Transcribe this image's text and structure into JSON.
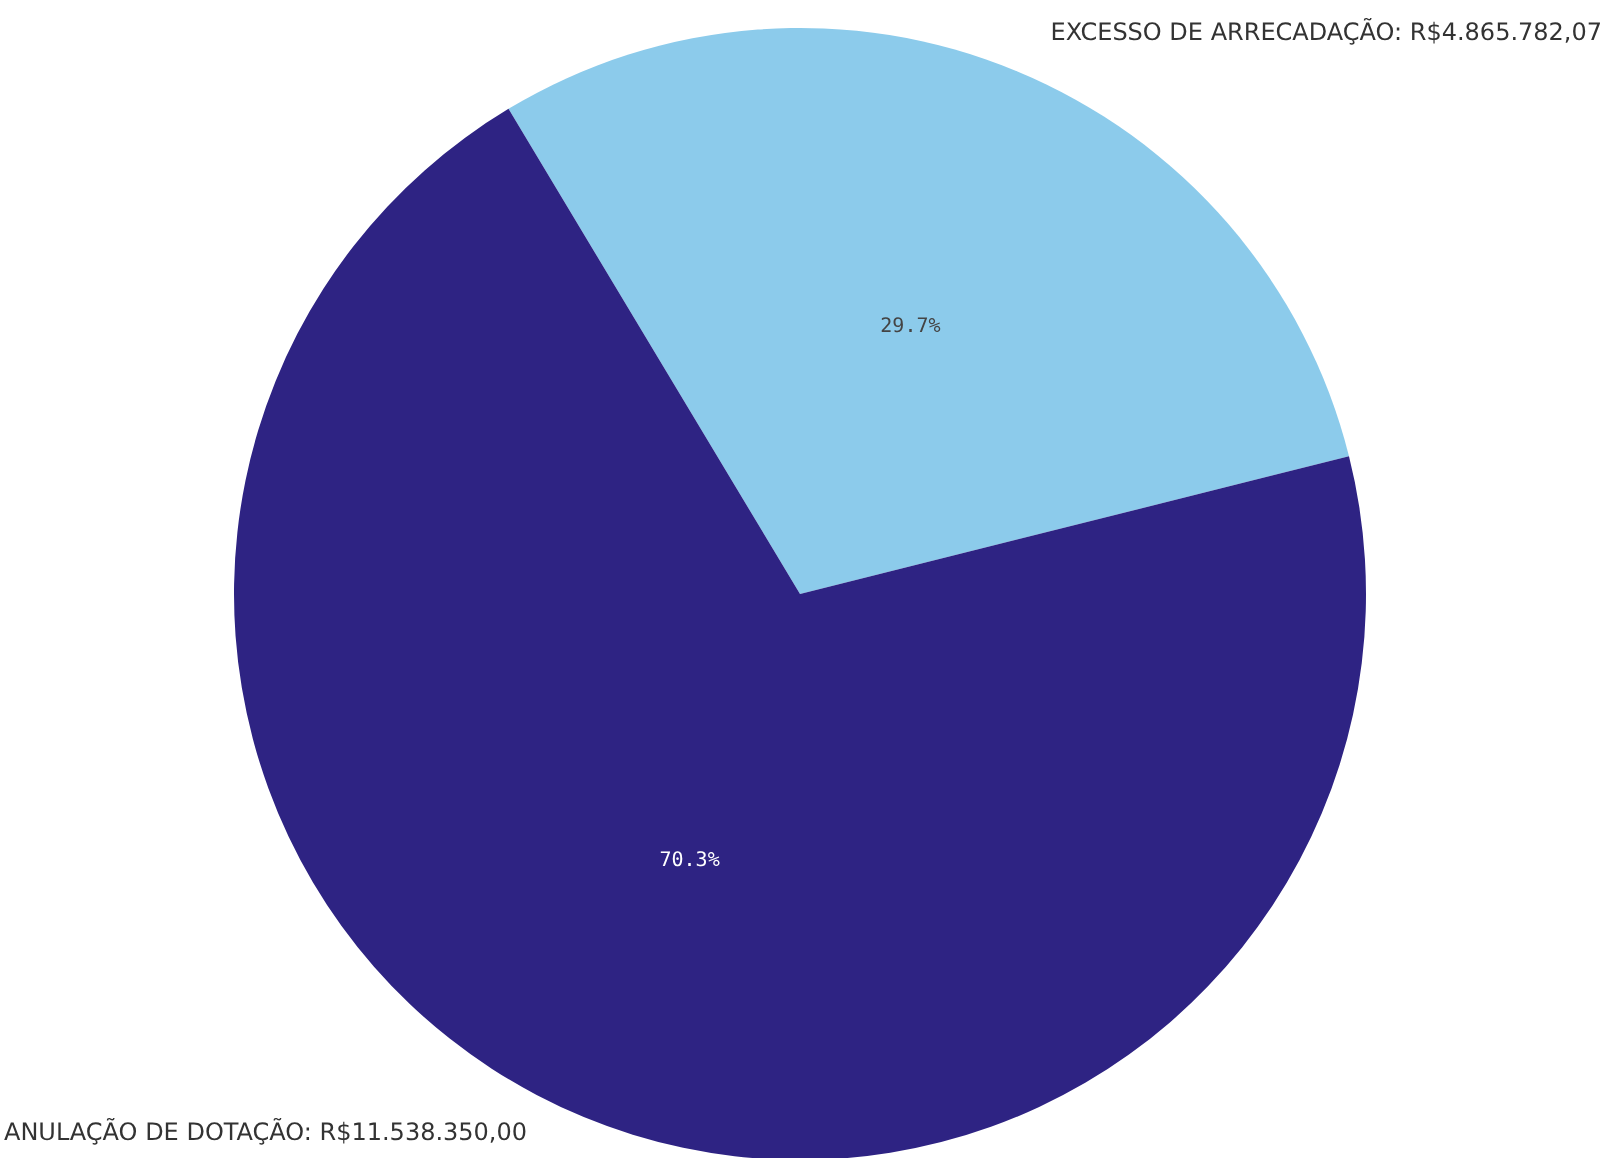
{
  "chart_data": {
    "type": "pie",
    "categories": [
      "EXCESSO DE ARRECADAÇÃO: R$4.865.782,07",
      "ANULAÇÃO DE DOTAÇÃO: R$11.538.350,00"
    ],
    "values": [
      29.7,
      70.3
    ],
    "colors": [
      "#8ccbeb",
      "#2e2383"
    ],
    "value_labels": [
      "29.7%",
      "70.3%"
    ],
    "legend": false
  }
}
